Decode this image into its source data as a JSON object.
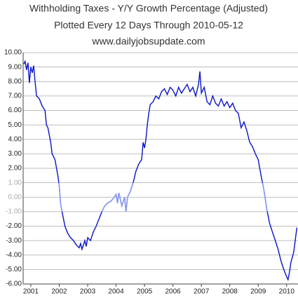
{
  "chart_data": {
    "type": "line",
    "title": "Withholding Taxes - Y/Y Growth Percentage (Adjusted)",
    "subtitle": "Plotted Every 12 Days Through 2010-05-12",
    "source": "www.dailyjobsupdate.com",
    "x": [
      2000.75,
      2000.8,
      2000.85,
      2000.9,
      2000.95,
      2001.0,
      2001.05,
      2001.1,
      2001.15,
      2001.2,
      2001.3,
      2001.4,
      2001.5,
      2001.55,
      2001.6,
      2001.7,
      2001.75,
      2001.85,
      2001.95,
      2002.0,
      2002.05,
      2002.1,
      2002.2,
      2002.3,
      2002.4,
      2002.5,
      2002.6,
      2002.7,
      2002.75,
      2002.8,
      2002.9,
      2002.95,
      2003.0,
      2003.1,
      2003.2,
      2003.3,
      2003.4,
      2003.5,
      2003.6,
      2003.7,
      2003.8,
      2003.9,
      2004.0,
      2004.05,
      2004.1,
      2004.2,
      2004.3,
      2004.35,
      2004.4,
      2004.5,
      2004.6,
      2004.7,
      2004.8,
      2004.9,
      2004.95,
      2005.0,
      2005.05,
      2005.1,
      2005.15,
      2005.2,
      2005.3,
      2005.4,
      2005.5,
      2005.6,
      2005.7,
      2005.8,
      2005.9,
      2006.0,
      2006.1,
      2006.2,
      2006.3,
      2006.4,
      2006.5,
      2006.6,
      2006.7,
      2006.8,
      2006.9,
      2006.95,
      2007.0,
      2007.1,
      2007.2,
      2007.3,
      2007.4,
      2007.5,
      2007.6,
      2007.7,
      2007.8,
      2007.9,
      2008.0,
      2008.1,
      2008.2,
      2008.3,
      2008.4,
      2008.5,
      2008.6,
      2008.7,
      2008.8,
      2008.9,
      2009.0,
      2009.1,
      2009.2,
      2009.3,
      2009.4,
      2009.5,
      2009.6,
      2009.7,
      2009.8,
      2009.9,
      2010.0,
      2010.05,
      2010.1,
      2010.15,
      2010.25,
      2010.36
    ],
    "series": [
      {
        "name": "Withholding Taxes Y/Y",
        "color": "#0a14c8",
        "values": [
          9.2,
          9.4,
          8.8,
          9.3,
          7.9,
          9.0,
          8.6,
          9.1,
          8.0,
          7.0,
          6.8,
          6.3,
          6.0,
          5.0,
          4.8,
          3.8,
          3.0,
          2.6,
          1.5,
          0.8,
          -0.5,
          -1.0,
          -2.0,
          -2.5,
          -2.8,
          -3.0,
          -3.3,
          -3.5,
          -3.2,
          -3.6,
          -3.0,
          -3.4,
          -2.8,
          -3.0,
          -2.4,
          -2.0,
          -1.5,
          -1.0,
          -0.6,
          -0.4,
          -0.3,
          -0.1,
          0.2,
          -0.4,
          0.3,
          -0.6,
          0.0,
          -1.0,
          0.0,
          0.4,
          1.0,
          1.8,
          2.3,
          2.6,
          3.8,
          3.4,
          4.0,
          5.0,
          5.8,
          6.4,
          6.6,
          7.0,
          6.8,
          7.3,
          7.5,
          7.1,
          7.6,
          7.4,
          7.0,
          7.6,
          7.2,
          7.5,
          7.8,
          7.3,
          7.6,
          7.0,
          7.8,
          8.7,
          7.2,
          7.6,
          6.6,
          6.4,
          7.0,
          6.5,
          6.3,
          6.8,
          6.3,
          6.6,
          6.2,
          6.5,
          6.0,
          5.8,
          4.8,
          5.2,
          4.6,
          3.8,
          3.5,
          3.0,
          2.6,
          1.5,
          0.5,
          -0.8,
          -1.8,
          -2.4,
          -3.0,
          -3.6,
          -4.4,
          -5.0,
          -5.5,
          -5.7,
          -5.2,
          -4.5,
          -3.8,
          -2.1
        ]
      }
    ],
    "muted_range": {
      "ylim": [
        -1,
        1
      ],
      "color": "#8c9cf0"
    },
    "xlim": [
      2000.73,
      2010.4
    ],
    "xticks": [
      2001,
      2002,
      2003,
      2004,
      2005,
      2006,
      2007,
      2008,
      2009,
      2010
    ],
    "ylim": [
      -6,
      10
    ],
    "yticks": [
      {
        "value": 10,
        "label": "10.00"
      },
      {
        "value": 9,
        "label": "9.00"
      },
      {
        "value": 8,
        "label": "8.00"
      },
      {
        "value": 7,
        "label": "7.00"
      },
      {
        "value": 6,
        "label": "6.00"
      },
      {
        "value": 5,
        "label": "5.00"
      },
      {
        "value": 4,
        "label": "4.00"
      },
      {
        "value": 3,
        "label": "3.00"
      },
      {
        "value": 2,
        "label": "2.00"
      },
      {
        "value": 1,
        "label": "1.00"
      },
      {
        "value": 0,
        "label": "0.00"
      },
      {
        "value": -1,
        "label": "-1.00"
      },
      {
        "value": -2,
        "label": "-2.00"
      },
      {
        "value": -3,
        "label": "-3.00"
      },
      {
        "value": -4,
        "label": "-4.00"
      },
      {
        "value": -5,
        "label": "-5.00"
      },
      {
        "value": -6,
        "label": "-6.00"
      }
    ],
    "grid": true
  }
}
